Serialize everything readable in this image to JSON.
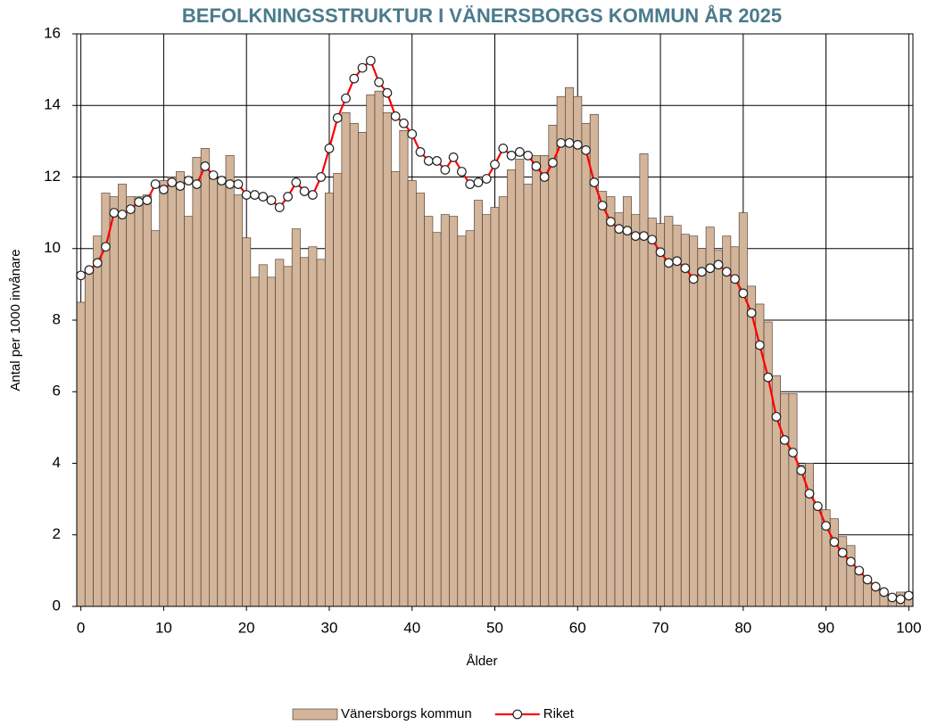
{
  "chart_data": {
    "type": "bar",
    "title": "BEFOLKNINGSSTRUKTUR I VÄNERSBORGS KOMMUN ÅR 2025",
    "x_label": "Ålder",
    "y_label": "Antal per 1000 invånare",
    "x": [
      0,
      1,
      2,
      3,
      4,
      5,
      6,
      7,
      8,
      9,
      10,
      11,
      12,
      13,
      14,
      15,
      16,
      17,
      18,
      19,
      20,
      21,
      22,
      23,
      24,
      25,
      26,
      27,
      28,
      29,
      30,
      31,
      32,
      33,
      34,
      35,
      36,
      37,
      38,
      39,
      40,
      41,
      42,
      43,
      44,
      45,
      46,
      47,
      48,
      49,
      50,
      51,
      52,
      53,
      54,
      55,
      56,
      57,
      58,
      59,
      60,
      61,
      62,
      63,
      64,
      65,
      66,
      67,
      68,
      69,
      70,
      71,
      72,
      73,
      74,
      75,
      76,
      77,
      78,
      79,
      80,
      81,
      82,
      83,
      84,
      85,
      86,
      87,
      88,
      89,
      90,
      91,
      92,
      93,
      94,
      95,
      96,
      97,
      98,
      99,
      100
    ],
    "series": [
      {
        "name": "Vänersborgs kommun",
        "type": "bar",
        "color": "#d2b59a",
        "values": [
          8.5,
          9.4,
          10.35,
          11.55,
          11.45,
          11.8,
          11.45,
          11.45,
          11.5,
          10.5,
          11.9,
          12.0,
          12.15,
          10.9,
          12.55,
          12.8,
          11.95,
          11.8,
          12.6,
          11.5,
          10.3,
          9.2,
          9.55,
          9.2,
          9.7,
          9.5,
          10.55,
          9.75,
          10.05,
          9.7,
          11.55,
          12.1,
          13.8,
          13.5,
          13.25,
          14.3,
          14.4,
          13.8,
          12.15,
          13.3,
          11.9,
          11.55,
          10.9,
          10.45,
          10.95,
          10.9,
          10.35,
          10.5,
          11.35,
          10.95,
          11.15,
          11.45,
          12.2,
          12.5,
          11.8,
          12.6,
          12.6,
          13.45,
          14.25,
          14.5,
          14.25,
          13.5,
          13.75,
          11.6,
          11.45,
          11.0,
          11.45,
          10.95,
          12.65,
          10.85,
          10.7,
          10.9,
          10.65,
          10.4,
          10.35,
          10.0,
          10.6,
          9.95,
          10.35,
          10.05,
          11.0,
          8.95,
          8.45,
          7.95,
          6.45,
          5.95,
          5.95,
          3.95,
          4.0,
          2.85,
          2.7,
          2.45,
          1.95,
          1.7,
          1.05,
          0.8,
          0.55,
          0.4,
          0.3,
          0.4,
          0.4
        ]
      },
      {
        "name": "Riket",
        "type": "line",
        "color": "#ff0000",
        "values": [
          9.25,
          9.4,
          9.6,
          10.05,
          11.0,
          10.95,
          11.1,
          11.3,
          11.35,
          11.8,
          11.65,
          11.85,
          11.75,
          11.9,
          11.8,
          12.3,
          12.05,
          11.9,
          11.8,
          11.8,
          11.5,
          11.5,
          11.45,
          11.35,
          11.15,
          11.45,
          11.85,
          11.6,
          11.5,
          12.0,
          12.8,
          13.65,
          14.2,
          14.75,
          15.05,
          15.25,
          14.65,
          14.35,
          13.7,
          13.5,
          13.2,
          12.7,
          12.45,
          12.45,
          12.2,
          12.55,
          12.15,
          11.8,
          11.85,
          11.95,
          12.35,
          12.8,
          12.6,
          12.7,
          12.6,
          12.3,
          12.0,
          12.4,
          12.95,
          12.95,
          12.9,
          12.75,
          11.85,
          11.2,
          10.75,
          10.55,
          10.5,
          10.35,
          10.35,
          10.25,
          9.9,
          9.6,
          9.65,
          9.45,
          9.15,
          9.35,
          9.45,
          9.55,
          9.35,
          9.15,
          8.75,
          8.2,
          7.3,
          6.4,
          5.3,
          4.65,
          4.3,
          3.8,
          3.15,
          2.8,
          2.25,
          1.8,
          1.5,
          1.25,
          1.0,
          0.75,
          0.55,
          0.4,
          0.25,
          0.2,
          0.3
        ]
      }
    ],
    "xlim": [
      -0.5,
      100.5
    ],
    "xticks": [
      0,
      10,
      20,
      30,
      40,
      50,
      60,
      70,
      80,
      90,
      100
    ],
    "ylim": [
      0,
      16
    ],
    "yticks": [
      0,
      2,
      4,
      6,
      8,
      10,
      12,
      14,
      16
    ],
    "grid": true,
    "legend": "bottom"
  }
}
